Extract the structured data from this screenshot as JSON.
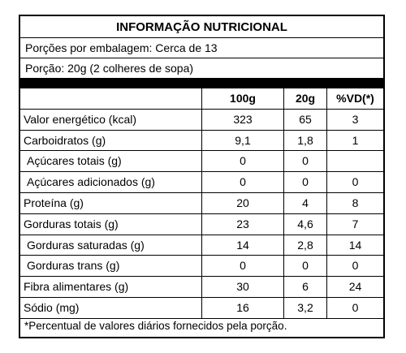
{
  "title": "INFORMAÇÃO NUTRICIONAL",
  "servings_per_package": "Porções por embalagem: Cerca de 13",
  "serving_size": "Porção: 20g (2 colheres de sopa)",
  "columns": [
    "",
    "100g",
    "20g",
    "%VD(*)"
  ],
  "rows": [
    {
      "name": "Valor energético (kcal)",
      "v100g": "323",
      "v20g": "65",
      "vd": "3",
      "indent": false
    },
    {
      "name": "Carboidratos (g)",
      "v100g": "9,1",
      "v20g": "1,8",
      "vd": "1",
      "indent": false
    },
    {
      "name": "Açúcares totais (g)",
      "v100g": "0",
      "v20g": "0",
      "vd": "",
      "indent": true
    },
    {
      "name": "Açúcares adicionados (g)",
      "v100g": "0",
      "v20g": "0",
      "vd": "0",
      "indent": true
    },
    {
      "name": "Proteína (g)",
      "v100g": "20",
      "v20g": "4",
      "vd": "8",
      "indent": false
    },
    {
      "name": "Gorduras totais (g)",
      "v100g": "23",
      "v20g": "4,6",
      "vd": "7",
      "indent": false
    },
    {
      "name": "Gorduras saturadas (g)",
      "v100g": "14",
      "v20g": "2,8",
      "vd": "14",
      "indent": true
    },
    {
      "name": "Gorduras trans (g)",
      "v100g": "0",
      "v20g": "0",
      "vd": "0",
      "indent": true
    },
    {
      "name": "Fibra alimentares (g)",
      "v100g": "30",
      "v20g": "6",
      "vd": "24",
      "indent": false
    },
    {
      "name": "Sódio (mg)",
      "v100g": "16",
      "v20g": "3,2",
      "vd": "0",
      "indent": false
    }
  ],
  "footnote": "*Percentual de valores diários fornecidos pela porção."
}
